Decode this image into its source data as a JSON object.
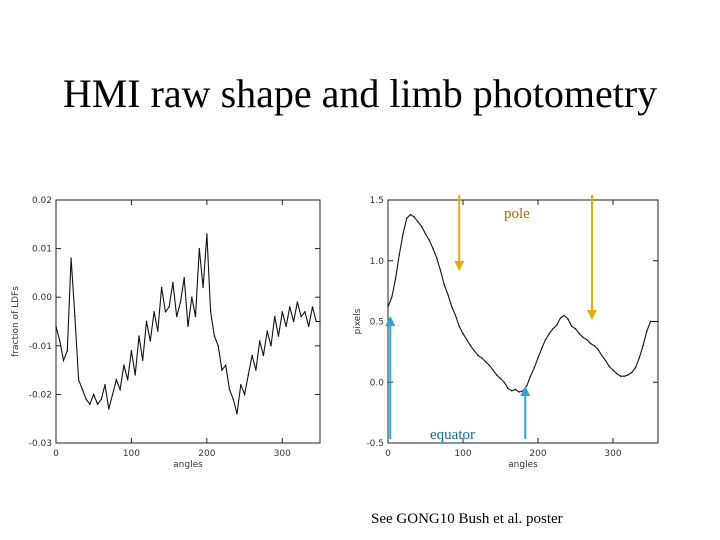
{
  "title": "HMI raw shape and limb photometry",
  "annotations": {
    "pole": "pole",
    "equator": "equator",
    "pole_arrow_color": "#e0b000",
    "equator_arrow_color": "#2aa6d8",
    "pole_angles": [
      95,
      272
    ],
    "equator_angles": [
      3,
      183
    ]
  },
  "footnote": "See GONG10 Bush et al. poster",
  "chart_data": [
    {
      "type": "line",
      "title": "",
      "xlabel": "angles",
      "ylabel": "fraction of LDFs",
      "xlim": [
        0,
        350
      ],
      "ylim": [
        -0.03,
        0.02
      ],
      "xticks": [
        0,
        100,
        200,
        300
      ],
      "xtick_labels": [
        "0",
        "100",
        "200",
        "300"
      ],
      "yticks": [
        -0.03,
        -0.02,
        -0.01,
        0.0,
        0.01,
        0.02
      ],
      "ytick_labels": [
        "-0.03",
        "-0.02",
        "-0.01",
        "0.00",
        "0.01",
        "0.02"
      ],
      "grid": false,
      "series": [
        {
          "name": "limb photometry",
          "x": [
            0,
            5,
            10,
            15,
            20,
            25,
            30,
            35,
            40,
            45,
            50,
            55,
            60,
            65,
            70,
            75,
            80,
            85,
            90,
            95,
            100,
            105,
            110,
            115,
            120,
            125,
            130,
            135,
            140,
            145,
            150,
            155,
            160,
            165,
            170,
            175,
            180,
            185,
            190,
            195,
            200,
            205,
            210,
            215,
            220,
            225,
            230,
            235,
            240,
            245,
            250,
            255,
            260,
            265,
            270,
            275,
            280,
            285,
            290,
            295,
            300,
            305,
            310,
            315,
            320,
            325,
            330,
            335,
            340,
            345,
            350
          ],
          "y": [
            -0.006,
            -0.009,
            -0.013,
            -0.011,
            0.008,
            -0.004,
            -0.017,
            -0.019,
            -0.021,
            -0.022,
            -0.02,
            -0.022,
            -0.021,
            -0.018,
            -0.023,
            -0.02,
            -0.017,
            -0.019,
            -0.014,
            -0.017,
            -0.011,
            -0.016,
            -0.008,
            -0.013,
            -0.005,
            -0.009,
            -0.003,
            -0.007,
            0.002,
            -0.003,
            -0.002,
            0.003,
            -0.004,
            -0.001,
            0.004,
            -0.006,
            0.0,
            -0.004,
            0.01,
            0.002,
            0.013,
            -0.003,
            -0.008,
            -0.01,
            -0.015,
            -0.014,
            -0.019,
            -0.021,
            -0.024,
            -0.018,
            -0.02,
            -0.016,
            -0.012,
            -0.015,
            -0.009,
            -0.012,
            -0.007,
            -0.01,
            -0.004,
            -0.008,
            -0.003,
            -0.006,
            -0.002,
            -0.005,
            -0.001,
            -0.004,
            -0.003,
            -0.006,
            -0.002,
            -0.005,
            -0.005
          ]
        }
      ]
    },
    {
      "type": "line",
      "title": "",
      "xlabel": "angles",
      "ylabel": "pixels",
      "xlim": [
        0,
        360
      ],
      "ylim": [
        -0.5,
        1.5
      ],
      "xticks": [
        0,
        100,
        200,
        300
      ],
      "xtick_labels": [
        "0",
        "100",
        "200",
        "300"
      ],
      "yticks": [
        -0.5,
        0.0,
        0.5,
        1.0,
        1.5
      ],
      "ytick_labels": [
        "-0.5",
        "0.0",
        "0.5",
        "1.0",
        "1.5"
      ],
      "grid": false,
      "series": [
        {
          "name": "raw shape",
          "x": [
            0,
            5,
            10,
            15,
            20,
            25,
            30,
            35,
            40,
            45,
            50,
            55,
            60,
            65,
            70,
            75,
            80,
            85,
            90,
            95,
            100,
            105,
            110,
            115,
            120,
            125,
            130,
            135,
            140,
            145,
            150,
            155,
            160,
            165,
            170,
            175,
            180,
            185,
            190,
            195,
            200,
            205,
            210,
            215,
            220,
            225,
            230,
            235,
            240,
            245,
            250,
            255,
            260,
            265,
            270,
            275,
            280,
            285,
            290,
            295,
            300,
            305,
            310,
            315,
            320,
            325,
            330,
            335,
            340,
            345,
            350,
            355,
            360
          ],
          "y": [
            0.62,
            0.7,
            0.85,
            1.05,
            1.22,
            1.35,
            1.38,
            1.36,
            1.32,
            1.28,
            1.22,
            1.17,
            1.1,
            1.02,
            0.92,
            0.8,
            0.72,
            0.62,
            0.55,
            0.46,
            0.4,
            0.35,
            0.3,
            0.26,
            0.22,
            0.2,
            0.17,
            0.14,
            0.1,
            0.06,
            0.03,
            0.0,
            -0.05,
            -0.07,
            -0.06,
            -0.08,
            -0.07,
            -0.03,
            0.05,
            0.12,
            0.2,
            0.28,
            0.35,
            0.4,
            0.44,
            0.47,
            0.53,
            0.55,
            0.52,
            0.46,
            0.44,
            0.4,
            0.37,
            0.35,
            0.32,
            0.3,
            0.27,
            0.22,
            0.18,
            0.13,
            0.1,
            0.07,
            0.05,
            0.05,
            0.06,
            0.08,
            0.12,
            0.2,
            0.3,
            0.42,
            0.5,
            0.5,
            0.5
          ]
        }
      ]
    }
  ]
}
